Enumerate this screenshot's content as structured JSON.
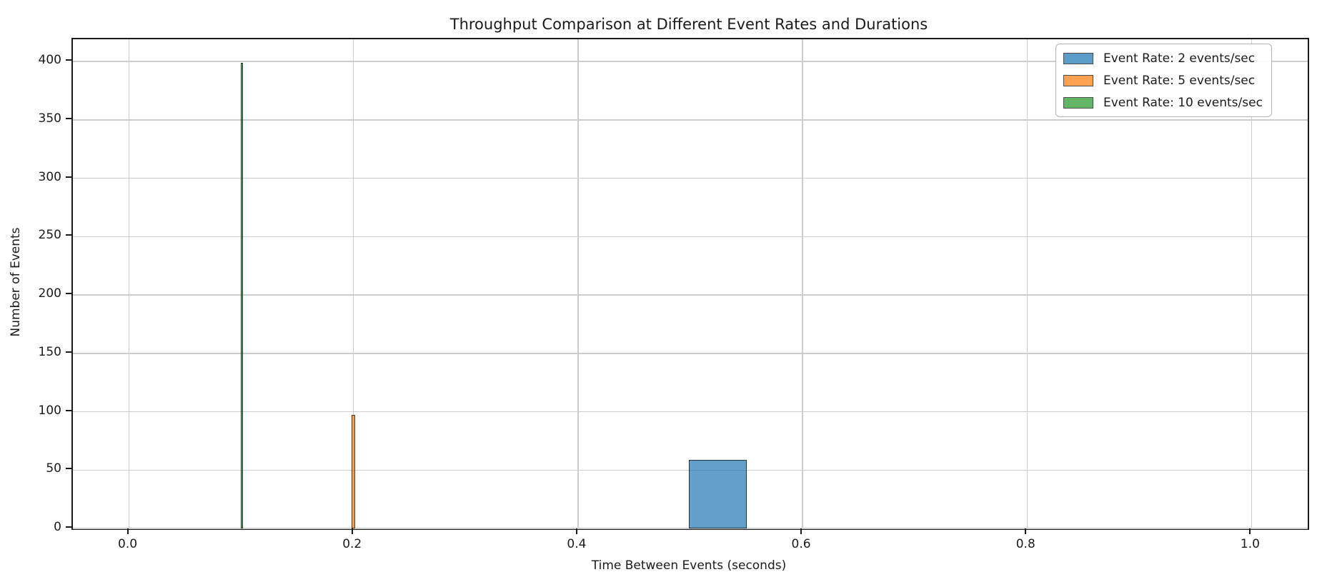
{
  "chart_data": {
    "type": "bar",
    "variant": "histogram",
    "title": "Throughput Comparison at Different Event Rates and Durations",
    "xlabel": "Time Between Events (seconds)",
    "ylabel": "Number of Events",
    "xlim": [
      -0.05,
      1.05
    ],
    "ylim": [
      0,
      419
    ],
    "grid": true,
    "legend_position": "upper-right",
    "x_ticks": [
      {
        "value": 0.0,
        "label": "0.0"
      },
      {
        "value": 0.2,
        "label": "0.2"
      },
      {
        "value": 0.4,
        "label": "0.4"
      },
      {
        "value": 0.6,
        "label": "0.6"
      },
      {
        "value": 0.8,
        "label": "0.8"
      },
      {
        "value": 1.0,
        "label": "1.0"
      }
    ],
    "y_ticks": [
      {
        "value": 0,
        "label": "0"
      },
      {
        "value": 50,
        "label": "50"
      },
      {
        "value": 100,
        "label": "100"
      },
      {
        "value": 150,
        "label": "150"
      },
      {
        "value": 200,
        "label": "200"
      },
      {
        "value": 250,
        "label": "250"
      },
      {
        "value": 300,
        "label": "300"
      },
      {
        "value": 350,
        "label": "350"
      },
      {
        "value": 400,
        "label": "400"
      }
    ],
    "series": [
      {
        "name": "Event Rate: 2 events/sec",
        "fill": "rgba(31,119,180,0.7)",
        "legend_color": "#5b9cc9",
        "bins": [
          {
            "x0": 0.499,
            "x1": 0.55,
            "count": 59
          }
        ]
      },
      {
        "name": "Event Rate: 5 events/sec",
        "fill": "rgba(255,127,14,0.7)",
        "legend_color": "#ffa351",
        "bins": [
          {
            "x0": 0.1985,
            "x1": 0.2015,
            "count": 97
          }
        ]
      },
      {
        "name": "Event Rate: 10 events/sec",
        "fill": "rgba(44,160,44,0.7)",
        "legend_color": "#63b663",
        "bins": [
          {
            "x0": 0.0995,
            "x1": 0.1015,
            "count": 399
          }
        ]
      }
    ]
  },
  "legend": {
    "items": [
      {
        "label": "Event Rate: 2 events/sec",
        "color": "#5b9cc9"
      },
      {
        "label": "Event Rate: 5 events/sec",
        "color": "#ffa351"
      },
      {
        "label": "Event Rate: 10 events/sec",
        "color": "#63b663"
      }
    ]
  }
}
